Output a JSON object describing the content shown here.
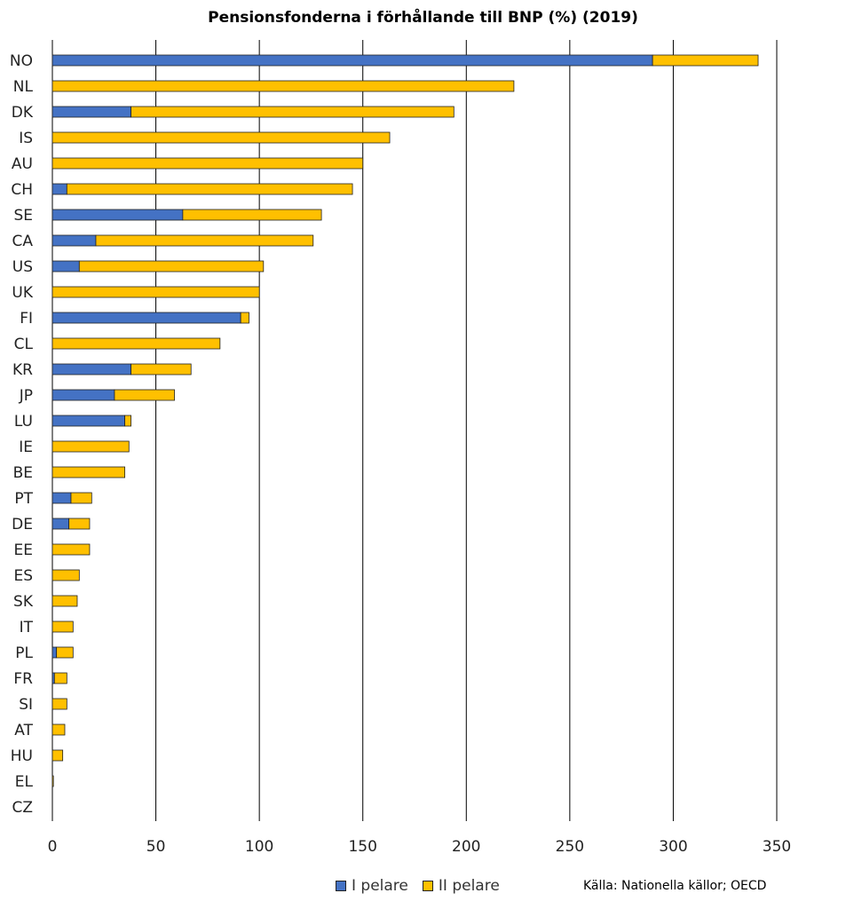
{
  "chart_data": {
    "type": "bar",
    "orientation": "horizontal",
    "stacked": true,
    "title": "Pensionsfonderna i förhållande till BNP (%) (2019)",
    "xlim": [
      0,
      350
    ],
    "xticks": [
      "0",
      "50",
      "100",
      "150",
      "200",
      "250",
      "300",
      "350"
    ],
    "grid": "vertical",
    "legend_placement": "bottom",
    "categories": [
      "NO",
      "NL",
      "DK",
      "IS",
      "AU",
      "CH",
      "SE",
      "CA",
      "US",
      "UK",
      "FI",
      "CL",
      "KR",
      "JP",
      "LU",
      "IE",
      "BE",
      "PT",
      "DE",
      "EE",
      "ES",
      "SK",
      "IT",
      "PL",
      "FR",
      "SI",
      "AT",
      "HU",
      "EL",
      "CZ"
    ],
    "series": [
      {
        "name": "I pelare",
        "color": "#4472C4",
        "values": [
          290,
          0,
          38,
          0,
          0,
          7,
          63,
          21,
          13,
          0,
          91,
          0,
          38,
          30,
          35,
          0,
          0,
          9,
          8,
          0,
          0,
          0,
          0,
          2,
          1,
          0,
          0,
          0,
          0,
          0
        ]
      },
      {
        "name": "II pelare",
        "color": "#FFC000",
        "values": [
          51,
          223,
          156,
          163,
          150,
          138,
          67,
          105,
          89,
          100,
          4,
          81,
          29,
          29,
          3,
          37,
          35,
          10,
          10,
          18,
          13,
          12,
          10,
          8,
          6,
          7,
          6,
          5,
          0.5,
          0
        ]
      }
    ]
  },
  "legend": {
    "items": [
      "I pelare",
      "II pelare"
    ]
  },
  "source": "Källa: Nationella källor; OECD"
}
